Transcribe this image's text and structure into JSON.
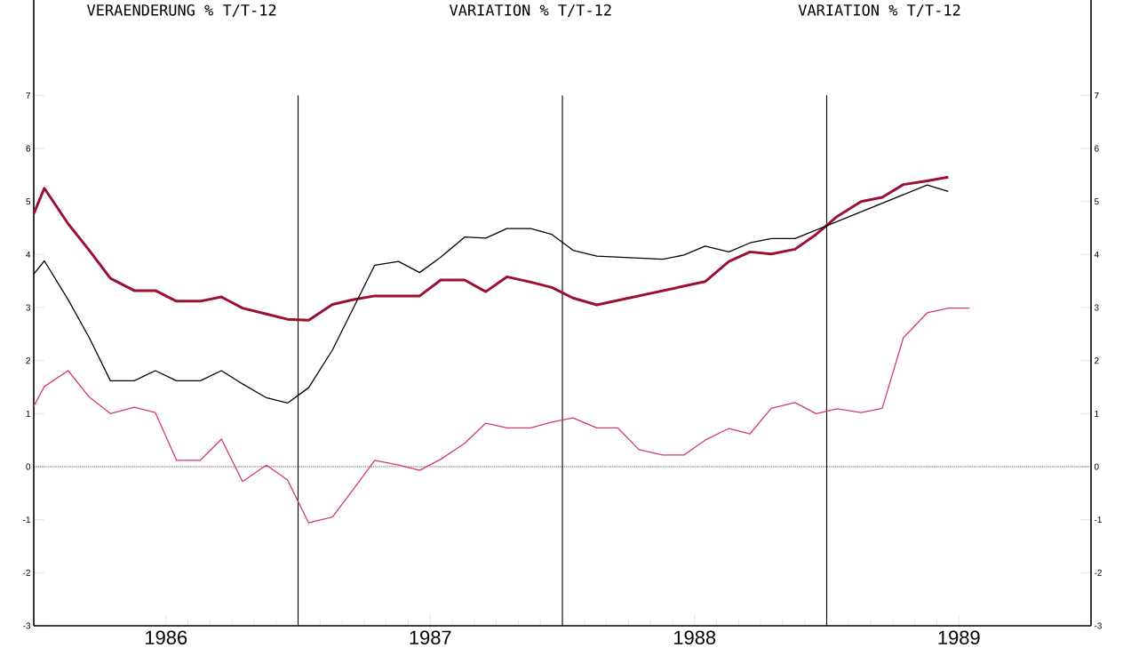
{
  "chart_data": {
    "type": "line",
    "annotations": [
      "VERAENDERUNG % T/T-12",
      "VARIATION % T/T-12",
      "VARIATION % T/T-12"
    ],
    "series": [
      {
        "color": "#9b1030",
        "x": [
          1986.0,
          1986.04,
          1986.13,
          1986.21,
          1986.29,
          1986.38,
          1986.46,
          1986.54,
          1986.63,
          1986.71,
          1986.79,
          1986.88,
          1986.96,
          1987.04,
          1987.13,
          1987.21,
          1987.29,
          1987.38,
          1987.46,
          1987.54,
          1987.63,
          1987.71,
          1987.79,
          1987.88,
          1987.96,
          1988.04,
          1988.13,
          1988.54,
          1988.63,
          1988.71,
          1988.79,
          1988.88,
          1988.96,
          1989.04,
          1989.13,
          1989.21,
          1989.29,
          1989.38,
          1989.46
        ],
        "values": [
          4.77,
          5.25,
          4.58,
          4.08,
          3.55,
          3.32,
          3.32,
          3.12,
          3.12,
          3.2,
          2.99,
          2.88,
          2.78,
          2.76,
          3.06,
          3.15,
          3.22,
          3.22,
          3.22,
          3.52,
          3.52,
          3.3,
          3.58,
          3.48,
          3.38,
          3.18,
          3.05,
          3.49,
          3.87,
          4.05,
          4.01,
          4.1,
          4.38,
          4.72,
          5.0,
          5.08,
          5.32,
          5.39,
          5.46
        ]
      },
      {
        "color": "#000000",
        "x": [
          1986.0,
          1986.04,
          1986.13,
          1986.21,
          1986.29,
          1986.38,
          1986.46,
          1986.54,
          1986.63,
          1986.71,
          1986.79,
          1986.88,
          1986.96,
          1987.04,
          1987.13,
          1987.21,
          1987.29,
          1987.38,
          1987.46,
          1987.54,
          1987.63,
          1987.71,
          1987.79,
          1987.88,
          1987.96,
          1988.04,
          1988.13,
          1988.38,
          1988.46,
          1988.54,
          1988.63,
          1988.71,
          1988.79,
          1988.88,
          1989.38,
          1989.46
        ],
        "values": [
          3.63,
          3.88,
          3.15,
          2.43,
          1.62,
          1.62,
          1.81,
          1.62,
          1.62,
          1.81,
          1.56,
          1.3,
          1.2,
          1.49,
          2.2,
          3.0,
          3.8,
          3.87,
          3.66,
          3.95,
          4.33,
          4.31,
          4.49,
          4.49,
          4.38,
          4.08,
          3.97,
          3.91,
          3.99,
          4.16,
          4.05,
          4.22,
          4.3,
          4.3,
          5.31,
          5.19
        ]
      },
      {
        "color": "#d63a6a",
        "x": [
          1986.0,
          1986.04,
          1986.13,
          1986.21,
          1986.29,
          1986.38,
          1986.46,
          1986.54,
          1986.63,
          1986.71,
          1986.79,
          1986.88,
          1986.96,
          1987.04,
          1987.13,
          1987.21,
          1987.29,
          1987.38,
          1987.46,
          1987.54,
          1987.63,
          1987.71,
          1987.79,
          1987.88,
          1987.96,
          1988.04,
          1988.13,
          1988.21,
          1988.29,
          1988.38,
          1988.46,
          1988.54,
          1988.63,
          1988.71,
          1988.79,
          1988.88,
          1988.96,
          1989.04,
          1989.13,
          1989.21,
          1989.29,
          1989.38,
          1989.46,
          1989.54
        ],
        "values": [
          1.14,
          1.51,
          1.81,
          1.31,
          1.0,
          1.12,
          1.02,
          0.12,
          0.12,
          0.52,
          -0.28,
          0.03,
          -0.25,
          -1.06,
          -0.95,
          -0.42,
          0.12,
          0.03,
          -0.07,
          0.14,
          0.44,
          0.82,
          0.73,
          0.73,
          0.84,
          0.92,
          0.73,
          0.73,
          0.32,
          0.22,
          0.22,
          0.5,
          0.72,
          0.62,
          1.1,
          1.21,
          1.0,
          1.09,
          1.02,
          1.1,
          2.43,
          2.9,
          2.99,
          2.99
        ]
      }
    ],
    "xlim": [
      1986,
      1990
    ],
    "xticks": [
      {
        "value": 1986.5,
        "label": "1986"
      },
      {
        "value": 1987.5,
        "label": "1987"
      },
      {
        "value": 1988.5,
        "label": "1988"
      },
      {
        "value": 1989.5,
        "label": "1989"
      }
    ],
    "ylim": [
      -3,
      8.8
    ],
    "yticks": [
      -3,
      -2,
      -1,
      0,
      1,
      2,
      3,
      4,
      5,
      6,
      7
    ],
    "y2lim": [
      -3,
      8.8
    ],
    "y2ticks": [
      -3,
      -2,
      -1,
      0,
      1,
      2,
      3,
      4,
      5,
      6,
      7
    ],
    "ref_lines": [
      {
        "axis": "x",
        "value": 1987,
        "color": "#000000",
        "line_style": "solid"
      },
      {
        "axis": "x",
        "value": 1988,
        "color": "#000000",
        "line_style": "solid"
      },
      {
        "axis": "x",
        "value": 1989,
        "color": "#000000",
        "line_style": "solid"
      },
      {
        "axis": "y",
        "value": 0,
        "color": "#000000",
        "line_style": "dotted"
      }
    ]
  }
}
